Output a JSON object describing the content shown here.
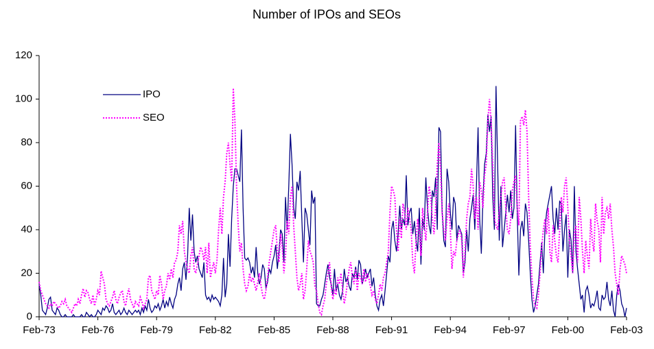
{
  "chart_data": {
    "type": "line",
    "title": "Number of IPOs and SEOs",
    "categories": [
      "Feb-73",
      null,
      null,
      null,
      null,
      null,
      null,
      null,
      null,
      null,
      null,
      null,
      null,
      null,
      null,
      null,
      null,
      null,
      null,
      null,
      null,
      null,
      null,
      null,
      null,
      null,
      null,
      null,
      null,
      null,
      null,
      null,
      null,
      null,
      null,
      null,
      "Feb-76",
      null,
      null,
      null,
      null,
      null,
      null,
      null,
      null,
      null,
      null,
      null,
      null,
      null,
      null,
      null,
      null,
      null,
      null,
      null,
      null,
      null,
      null,
      null,
      null,
      null,
      null,
      null,
      null,
      null,
      null,
      null,
      null,
      null,
      null,
      null,
      "Feb-79",
      null,
      null,
      null,
      null,
      null,
      null,
      null,
      null,
      null,
      null,
      null,
      null,
      null,
      null,
      null,
      null,
      null,
      null,
      null,
      null,
      null,
      null,
      null,
      null,
      null,
      null,
      null,
      null,
      null,
      null,
      null,
      null,
      null,
      null,
      null,
      "Feb-82",
      null,
      null,
      null,
      null,
      null,
      null,
      null,
      null,
      null,
      null,
      null,
      null,
      null,
      null,
      null,
      null,
      null,
      null,
      null,
      null,
      null,
      null,
      null,
      null,
      null,
      null,
      null,
      null,
      null,
      null,
      null,
      null,
      null,
      null,
      null,
      "Feb-85",
      null,
      null,
      null,
      null,
      null,
      null,
      null,
      null,
      null,
      null,
      null,
      null,
      null,
      null,
      null,
      null,
      null,
      null,
      null,
      null,
      null,
      null,
      null,
      null,
      null,
      null,
      null,
      null,
      null,
      null,
      null,
      null,
      null,
      null,
      null,
      "Feb-88",
      null,
      null,
      null,
      null,
      null,
      null,
      null,
      null,
      null,
      null,
      null,
      null,
      null,
      null,
      null,
      null,
      null,
      null,
      null,
      null,
      null,
      null,
      null,
      null,
      null,
      null,
      null,
      null,
      null,
      null,
      null,
      null,
      null,
      null,
      null,
      "Feb-91",
      null,
      null,
      null,
      null,
      null,
      null,
      null,
      null,
      null,
      null,
      null,
      null,
      null,
      null,
      null,
      null,
      null,
      null,
      null,
      null,
      null,
      null,
      null,
      null,
      null,
      null,
      null,
      null,
      null,
      null,
      null,
      null,
      null,
      null,
      null,
      "Feb-94",
      null,
      null,
      null,
      null,
      null,
      null,
      null,
      null,
      null,
      null,
      null,
      null,
      null,
      null,
      null,
      null,
      null,
      null,
      null,
      null,
      null,
      null,
      null,
      null,
      null,
      null,
      null,
      null,
      null,
      null,
      null,
      null,
      null,
      null,
      null,
      "Feb-97",
      null,
      null,
      null,
      null,
      null,
      null,
      null,
      null,
      null,
      null,
      null,
      null,
      null,
      null,
      null,
      null,
      null,
      null,
      null,
      null,
      null,
      null,
      null,
      null,
      null,
      null,
      null,
      null,
      null,
      null,
      null,
      null,
      null,
      null,
      null,
      "Feb-00",
      null,
      null,
      null,
      null,
      null,
      null,
      null,
      null,
      null,
      null,
      null,
      null,
      null,
      null,
      null,
      null,
      null,
      null,
      null,
      null,
      null,
      null,
      null,
      null,
      null,
      null,
      null,
      null,
      null,
      null,
      null,
      null,
      null,
      null,
      null,
      "Feb-03"
    ],
    "series": [
      {
        "name": "IPO",
        "color": "#000080",
        "dash": "solid",
        "values": [
          15,
          10,
          3,
          2,
          1,
          4,
          8,
          9,
          3,
          2,
          1,
          4,
          3,
          1,
          0,
          0,
          1,
          0,
          0,
          0,
          0,
          1,
          0,
          0,
          0,
          0,
          1,
          0,
          0,
          2,
          1,
          0,
          1,
          0,
          0,
          1,
          3,
          2,
          1,
          4,
          3,
          5,
          4,
          2,
          3,
          6,
          2,
          1,
          2,
          3,
          1,
          2,
          4,
          2,
          1,
          3,
          2,
          1,
          2,
          3,
          2,
          3,
          1,
          4,
          2,
          5,
          3,
          8,
          4,
          2,
          3,
          5,
          4,
          6,
          3,
          5,
          8,
          4,
          7,
          5,
          9,
          6,
          4,
          8,
          10,
          15,
          18,
          12,
          22,
          25,
          17,
          28,
          50,
          35,
          47,
          30,
          25,
          28,
          22,
          20,
          18,
          25,
          10,
          8,
          9,
          7,
          10,
          8,
          9,
          8,
          7,
          5,
          10,
          27,
          9,
          15,
          38,
          23,
          45,
          60,
          68,
          68,
          65,
          62,
          86,
          50,
          27,
          26,
          27,
          25,
          20,
          23,
          18,
          32,
          20,
          15,
          18,
          24,
          22,
          13,
          16,
          22,
          20,
          25,
          28,
          33,
          22,
          30,
          40,
          38,
          25,
          55,
          40,
          60,
          84,
          70,
          50,
          45,
          62,
          58,
          67,
          45,
          25,
          50,
          47,
          40,
          33,
          58,
          52,
          55,
          6,
          5,
          5,
          8,
          10,
          15,
          20,
          24,
          18,
          15,
          10,
          22,
          12,
          15,
          10,
          8,
          12,
          22,
          16,
          18,
          14,
          12,
          20,
          18,
          23,
          17,
          26,
          24,
          15,
          18,
          22,
          18,
          20,
          22,
          14,
          18,
          10,
          5,
          3,
          8,
          10,
          5,
          12,
          20,
          28,
          25,
          40,
          44,
          35,
          30,
          38,
          51,
          40,
          45,
          42,
          65,
          42,
          48,
          50,
          38,
          44,
          35,
          30,
          50,
          24,
          45,
          40,
          64,
          50,
          42,
          38,
          58,
          55,
          64,
          40,
          87,
          85,
          48,
          35,
          32,
          68,
          62,
          48,
          40,
          55,
          52,
          35,
          42,
          40,
          38,
          20,
          25,
          40,
          30,
          45,
          50,
          56,
          40,
          60,
          87,
          45,
          29,
          55,
          70,
          75,
          93,
          85,
          92,
          55,
          40,
          106,
          70,
          35,
          60,
          32,
          40,
          48,
          56,
          48,
          58,
          45,
          50,
          88,
          48,
          19,
          40,
          44,
          37,
          52,
          48,
          35,
          20,
          8,
          2,
          5,
          10,
          15,
          25,
          34,
          20,
          40,
          48,
          52,
          56,
          60,
          45,
          38,
          50,
          40,
          53,
          52,
          30,
          40,
          47,
          18,
          40,
          35,
          20,
          60,
          30,
          22,
          15,
          8,
          10,
          2,
          12,
          14,
          10,
          4,
          6,
          5,
          8,
          12,
          4,
          3,
          10,
          8,
          9,
          16,
          8,
          5,
          12,
          3,
          0,
          10,
          15,
          12,
          6,
          4,
          0,
          4
        ]
      },
      {
        "name": "SEO",
        "color": "#ff00ff",
        "dash": "dotted",
        "values": [
          16,
          12,
          10,
          8,
          6,
          5,
          4,
          6,
          5,
          7,
          6,
          5,
          4,
          5,
          7,
          6,
          8,
          5,
          4,
          3,
          2,
          4,
          6,
          5,
          8,
          6,
          10,
          13,
          9,
          12,
          11,
          8,
          6,
          10,
          5,
          8,
          12,
          10,
          21,
          18,
          15,
          8,
          6,
          5,
          7,
          9,
          12,
          8,
          6,
          9,
          11,
          12,
          7,
          5,
          10,
          13,
          8,
          6,
          4,
          7,
          6,
          5,
          9,
          7,
          4,
          6,
          8,
          18,
          19,
          12,
          10,
          8,
          12,
          10,
          19,
          15,
          8,
          12,
          14,
          20,
          17,
          22,
          18,
          25,
          26,
          30,
          42,
          38,
          44,
          30,
          25,
          22,
          20,
          28,
          32,
          22,
          20,
          24,
          28,
          32,
          30,
          26,
          32,
          20,
          34,
          18,
          22,
          25,
          20,
          26,
          40,
          50,
          38,
          55,
          62,
          75,
          80,
          70,
          62,
          105,
          90,
          60,
          42,
          30,
          34,
          22,
          15,
          12,
          14,
          20,
          16,
          18,
          15,
          12,
          16,
          20,
          14,
          10,
          8,
          12,
          18,
          25,
          30,
          35,
          40,
          42,
          30,
          25,
          38,
          32,
          20,
          28,
          44,
          38,
          55,
          60,
          42,
          30,
          18,
          12,
          15,
          20,
          8,
          12,
          22,
          35,
          30,
          28,
          25,
          14,
          12,
          6,
          2,
          1,
          5,
          8,
          15,
          20,
          25,
          14,
          8,
          12,
          10,
          18,
          15,
          20,
          12,
          6,
          10,
          16,
          22,
          25,
          18,
          15,
          22,
          12,
          20,
          18,
          15,
          22,
          16,
          20,
          18,
          14,
          10,
          12,
          8,
          6,
          10,
          15,
          12,
          18,
          20,
          25,
          30,
          48,
          60,
          58,
          55,
          40,
          30,
          45,
          36,
          52,
          48,
          40,
          50,
          45,
          40,
          25,
          20,
          35,
          45,
          38,
          28,
          50,
          42,
          35,
          48,
          60,
          55,
          45,
          38,
          50,
          70,
          80,
          68,
          48,
          40,
          35,
          45,
          52,
          40,
          22,
          30,
          28,
          35,
          38,
          40,
          35,
          18,
          30,
          45,
          52,
          55,
          68,
          60,
          45,
          55,
          40,
          62,
          58,
          50,
          65,
          70,
          90,
          100,
          90,
          70,
          45,
          42,
          40,
          48,
          55,
          62,
          64,
          50,
          40,
          38,
          45,
          58,
          62,
          65,
          50,
          42,
          90,
          92,
          88,
          95,
          85,
          55,
          32,
          18,
          8,
          5,
          4,
          10,
          20,
          32,
          40,
          45,
          38,
          50,
          30,
          25,
          42,
          35,
          28,
          25,
          40,
          55,
          48,
          60,
          64,
          50,
          35,
          28,
          20,
          38,
          42,
          25,
          55,
          45,
          30,
          20,
          35,
          28,
          22,
          45,
          35,
          30,
          52,
          44,
          40,
          25,
          55,
          38,
          48,
          50,
          45,
          52,
          40,
          32,
          20,
          15,
          10,
          22,
          28,
          26,
          24,
          20
        ]
      }
    ],
    "ylim": [
      0,
      120
    ],
    "yticks": [
      0,
      20,
      40,
      60,
      80,
      100,
      120
    ],
    "grid": false,
    "legend": "upper left"
  }
}
